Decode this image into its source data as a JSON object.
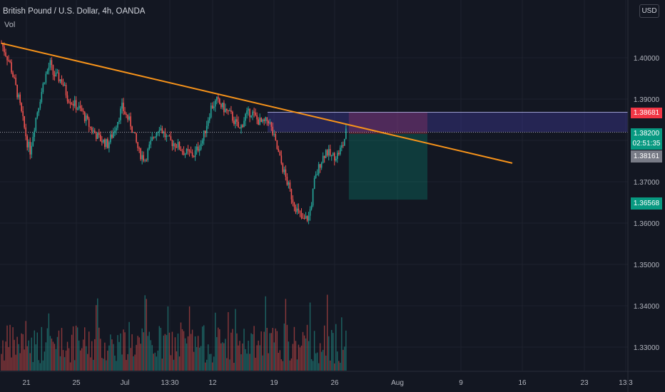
{
  "header": {
    "title": "British Pound / U.S. Dollar, 4h, OANDA",
    "indicator": "Vol",
    "currency": "USD"
  },
  "price_axis": {
    "ticks": [
      "1.40000",
      "1.39000",
      "1.37000",
      "1.36000",
      "1.35000",
      "1.34000",
      "1.33000"
    ]
  },
  "time_axis": {
    "ticks": [
      "21",
      "25",
      "Jul",
      "13:30",
      "12",
      "19",
      "26",
      "Aug",
      "9",
      "16",
      "23",
      "13:3"
    ]
  },
  "price_tags": {
    "stop": "1.38681",
    "current": "1.38200",
    "countdown": "02:51:35",
    "entry": "1.38161",
    "target": "1.36568"
  },
  "colors": {
    "background": "#131722",
    "up": "#26a69a",
    "down": "#ef5350",
    "trendline": "#f7931a",
    "stop_tag": "#f23645",
    "current_tag": "#089981",
    "entry_tag": "#787b86",
    "target_tag": "#089981"
  },
  "chart_data": {
    "type": "candlestick",
    "symbol": "GBPUSD",
    "interval": "4h",
    "ylim": [
      1.326,
      1.415
    ],
    "trendline": {
      "from": [
        0,
        1.4035
      ],
      "to": [
        240,
        1.3745
      ]
    },
    "position": {
      "type": "short",
      "stop": 1.38681,
      "entry": 1.38161,
      "target": 1.36568
    },
    "close_path": [
      [
        0,
        1.4035
      ],
      [
        6,
        1.3985
      ],
      [
        12,
        1.39
      ],
      [
        18,
        1.3795
      ],
      [
        20,
        1.3775
      ],
      [
        24,
        1.3855
      ],
      [
        30,
        1.395
      ],
      [
        34,
        1.3985
      ],
      [
        36,
        1.396
      ],
      [
        42,
        1.3945
      ],
      [
        46,
        1.3905
      ],
      [
        50,
        1.389
      ],
      [
        56,
        1.387
      ],
      [
        62,
        1.383
      ],
      [
        68,
        1.3805
      ],
      [
        74,
        1.379
      ],
      [
        78,
        1.382
      ],
      [
        84,
        1.388
      ],
      [
        90,
        1.384
      ],
      [
        96,
        1.377
      ],
      [
        100,
        1.3755
      ],
      [
        106,
        1.381
      ],
      [
        110,
        1.3835
      ],
      [
        116,
        1.38
      ],
      [
        122,
        1.379
      ],
      [
        128,
        1.377
      ],
      [
        134,
        1.3765
      ],
      [
        140,
        1.38
      ],
      [
        146,
        1.388
      ],
      [
        150,
        1.3895
      ],
      [
        154,
        1.388
      ],
      [
        160,
        1.386
      ],
      [
        166,
        1.3825
      ],
      [
        170,
        1.386
      ],
      [
        174,
        1.387
      ],
      [
        178,
        1.385
      ],
      [
        182,
        1.384
      ],
      [
        186,
        1.385
      ],
      [
        190,
        1.3805
      ],
      [
        194,
        1.3755
      ],
      [
        198,
        1.371
      ],
      [
        202,
        1.3665
      ],
      [
        206,
        1.363
      ],
      [
        210,
        1.3605
      ],
      [
        214,
        1.3615
      ],
      [
        216,
        1.365
      ],
      [
        218,
        1.37
      ],
      [
        222,
        1.3745
      ],
      [
        226,
        1.3775
      ],
      [
        230,
        1.376
      ],
      [
        234,
        1.3765
      ],
      [
        238,
        1.379
      ],
      [
        240,
        1.382
      ]
    ]
  }
}
